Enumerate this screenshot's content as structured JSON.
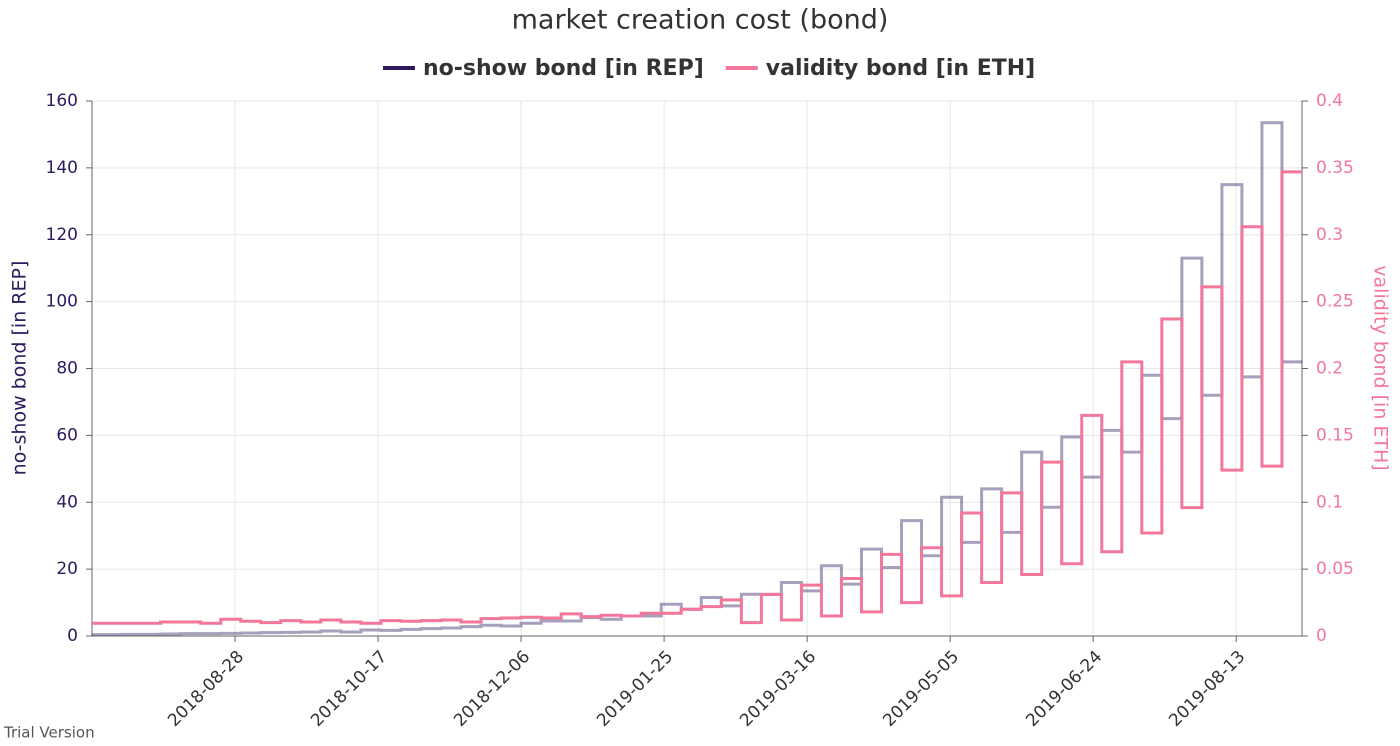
{
  "chart_data": {
    "type": "step",
    "title": "market creation cost (bond)",
    "watermark": "Trial Version",
    "y_label": "no-show bond [in REP]",
    "y2_label": "validity bond [in ETH]",
    "x": [
      "2018-07-05",
      "2018-07-12",
      "2018-07-19",
      "2018-07-26",
      "2018-08-02",
      "2018-08-09",
      "2018-08-16",
      "2018-08-23",
      "2018-08-30",
      "2018-09-06",
      "2018-09-13",
      "2018-09-20",
      "2018-09-27",
      "2018-10-04",
      "2018-10-11",
      "2018-10-18",
      "2018-10-25",
      "2018-11-01",
      "2018-11-08",
      "2018-11-15",
      "2018-11-22",
      "2018-11-29",
      "2018-12-06",
      "2018-12-13",
      "2018-12-20",
      "2018-12-27",
      "2019-01-03",
      "2019-01-10",
      "2019-01-17",
      "2019-01-24",
      "2019-01-31",
      "2019-02-07",
      "2019-02-14",
      "2019-02-21",
      "2019-02-28",
      "2019-03-07",
      "2019-03-14",
      "2019-03-21",
      "2019-03-28",
      "2019-04-04",
      "2019-04-11",
      "2019-04-18",
      "2019-04-25",
      "2019-05-02",
      "2019-05-09",
      "2019-05-16",
      "2019-05-23",
      "2019-05-30",
      "2019-06-06",
      "2019-06-13",
      "2019-06-20",
      "2019-06-27",
      "2019-07-04",
      "2019-07-11",
      "2019-07-18",
      "2019-07-25",
      "2019-08-01",
      "2019-08-08",
      "2019-08-15",
      "2019-08-22",
      "2019-08-29"
    ],
    "xlim": [
      "2018-07-09",
      "2019-09-05"
    ],
    "xticks": [
      "2018-08-28",
      "2018-10-17",
      "2018-12-06",
      "2019-01-25",
      "2019-03-16",
      "2019-05-05",
      "2019-06-24",
      "2019-08-13"
    ],
    "ylim": [
      0,
      160
    ],
    "yticks": [
      0,
      20,
      40,
      60,
      80,
      100,
      120,
      140,
      160
    ],
    "y2lim": [
      0,
      0.4
    ],
    "y2ticks": [
      0,
      0.05,
      0.1,
      0.15,
      0.2,
      0.25,
      0.3,
      0.35,
      0.4
    ],
    "grid": true,
    "series": [
      {
        "name": "no-show bond [in REP]",
        "color": "#2e1a5e",
        "values": [
          0.4,
          0.4,
          0.5,
          0.5,
          0.6,
          0.7,
          0.7,
          0.8,
          0.9,
          1,
          1.1,
          1.2,
          1.5,
          1.2,
          1.8,
          1.7,
          2,
          2.2,
          2.4,
          2.8,
          3.2,
          3,
          3.8,
          4.5,
          4.5,
          5.5,
          5,
          6,
          6,
          9.5,
          8,
          11.5,
          9,
          12.5,
          12.5,
          16,
          13.5,
          21,
          15.5,
          26,
          20.5,
          34.5,
          24,
          41.5,
          28,
          44,
          31,
          55,
          38.5,
          59.5,
          47.5,
          61.5,
          55,
          78,
          65,
          113,
          72,
          135,
          77.5,
          153.5,
          82
        ]
      },
      {
        "name": "validity bond [in ETH]",
        "color": "#f2779a",
        "axis": "y2",
        "values": [
          0.0095,
          0.0095,
          0.0095,
          0.0095,
          0.0105,
          0.0105,
          0.0095,
          0.0125,
          0.011,
          0.01,
          0.0115,
          0.0105,
          0.012,
          0.0105,
          0.0095,
          0.0115,
          0.011,
          0.0115,
          0.012,
          0.0105,
          0.013,
          0.0135,
          0.014,
          0.0135,
          0.0165,
          0.0145,
          0.0155,
          0.015,
          0.017,
          0.017,
          0.02,
          0.022,
          0.027,
          0.01,
          0.031,
          0.012,
          0.038,
          0.015,
          0.043,
          0.018,
          0.061,
          0.025,
          0.066,
          0.03,
          0.092,
          0.04,
          0.107,
          0.046,
          0.13,
          0.054,
          0.165,
          0.063,
          0.205,
          0.077,
          0.237,
          0.096,
          0.261,
          0.124,
          0.306,
          0.127,
          0.347
        ]
      }
    ]
  }
}
